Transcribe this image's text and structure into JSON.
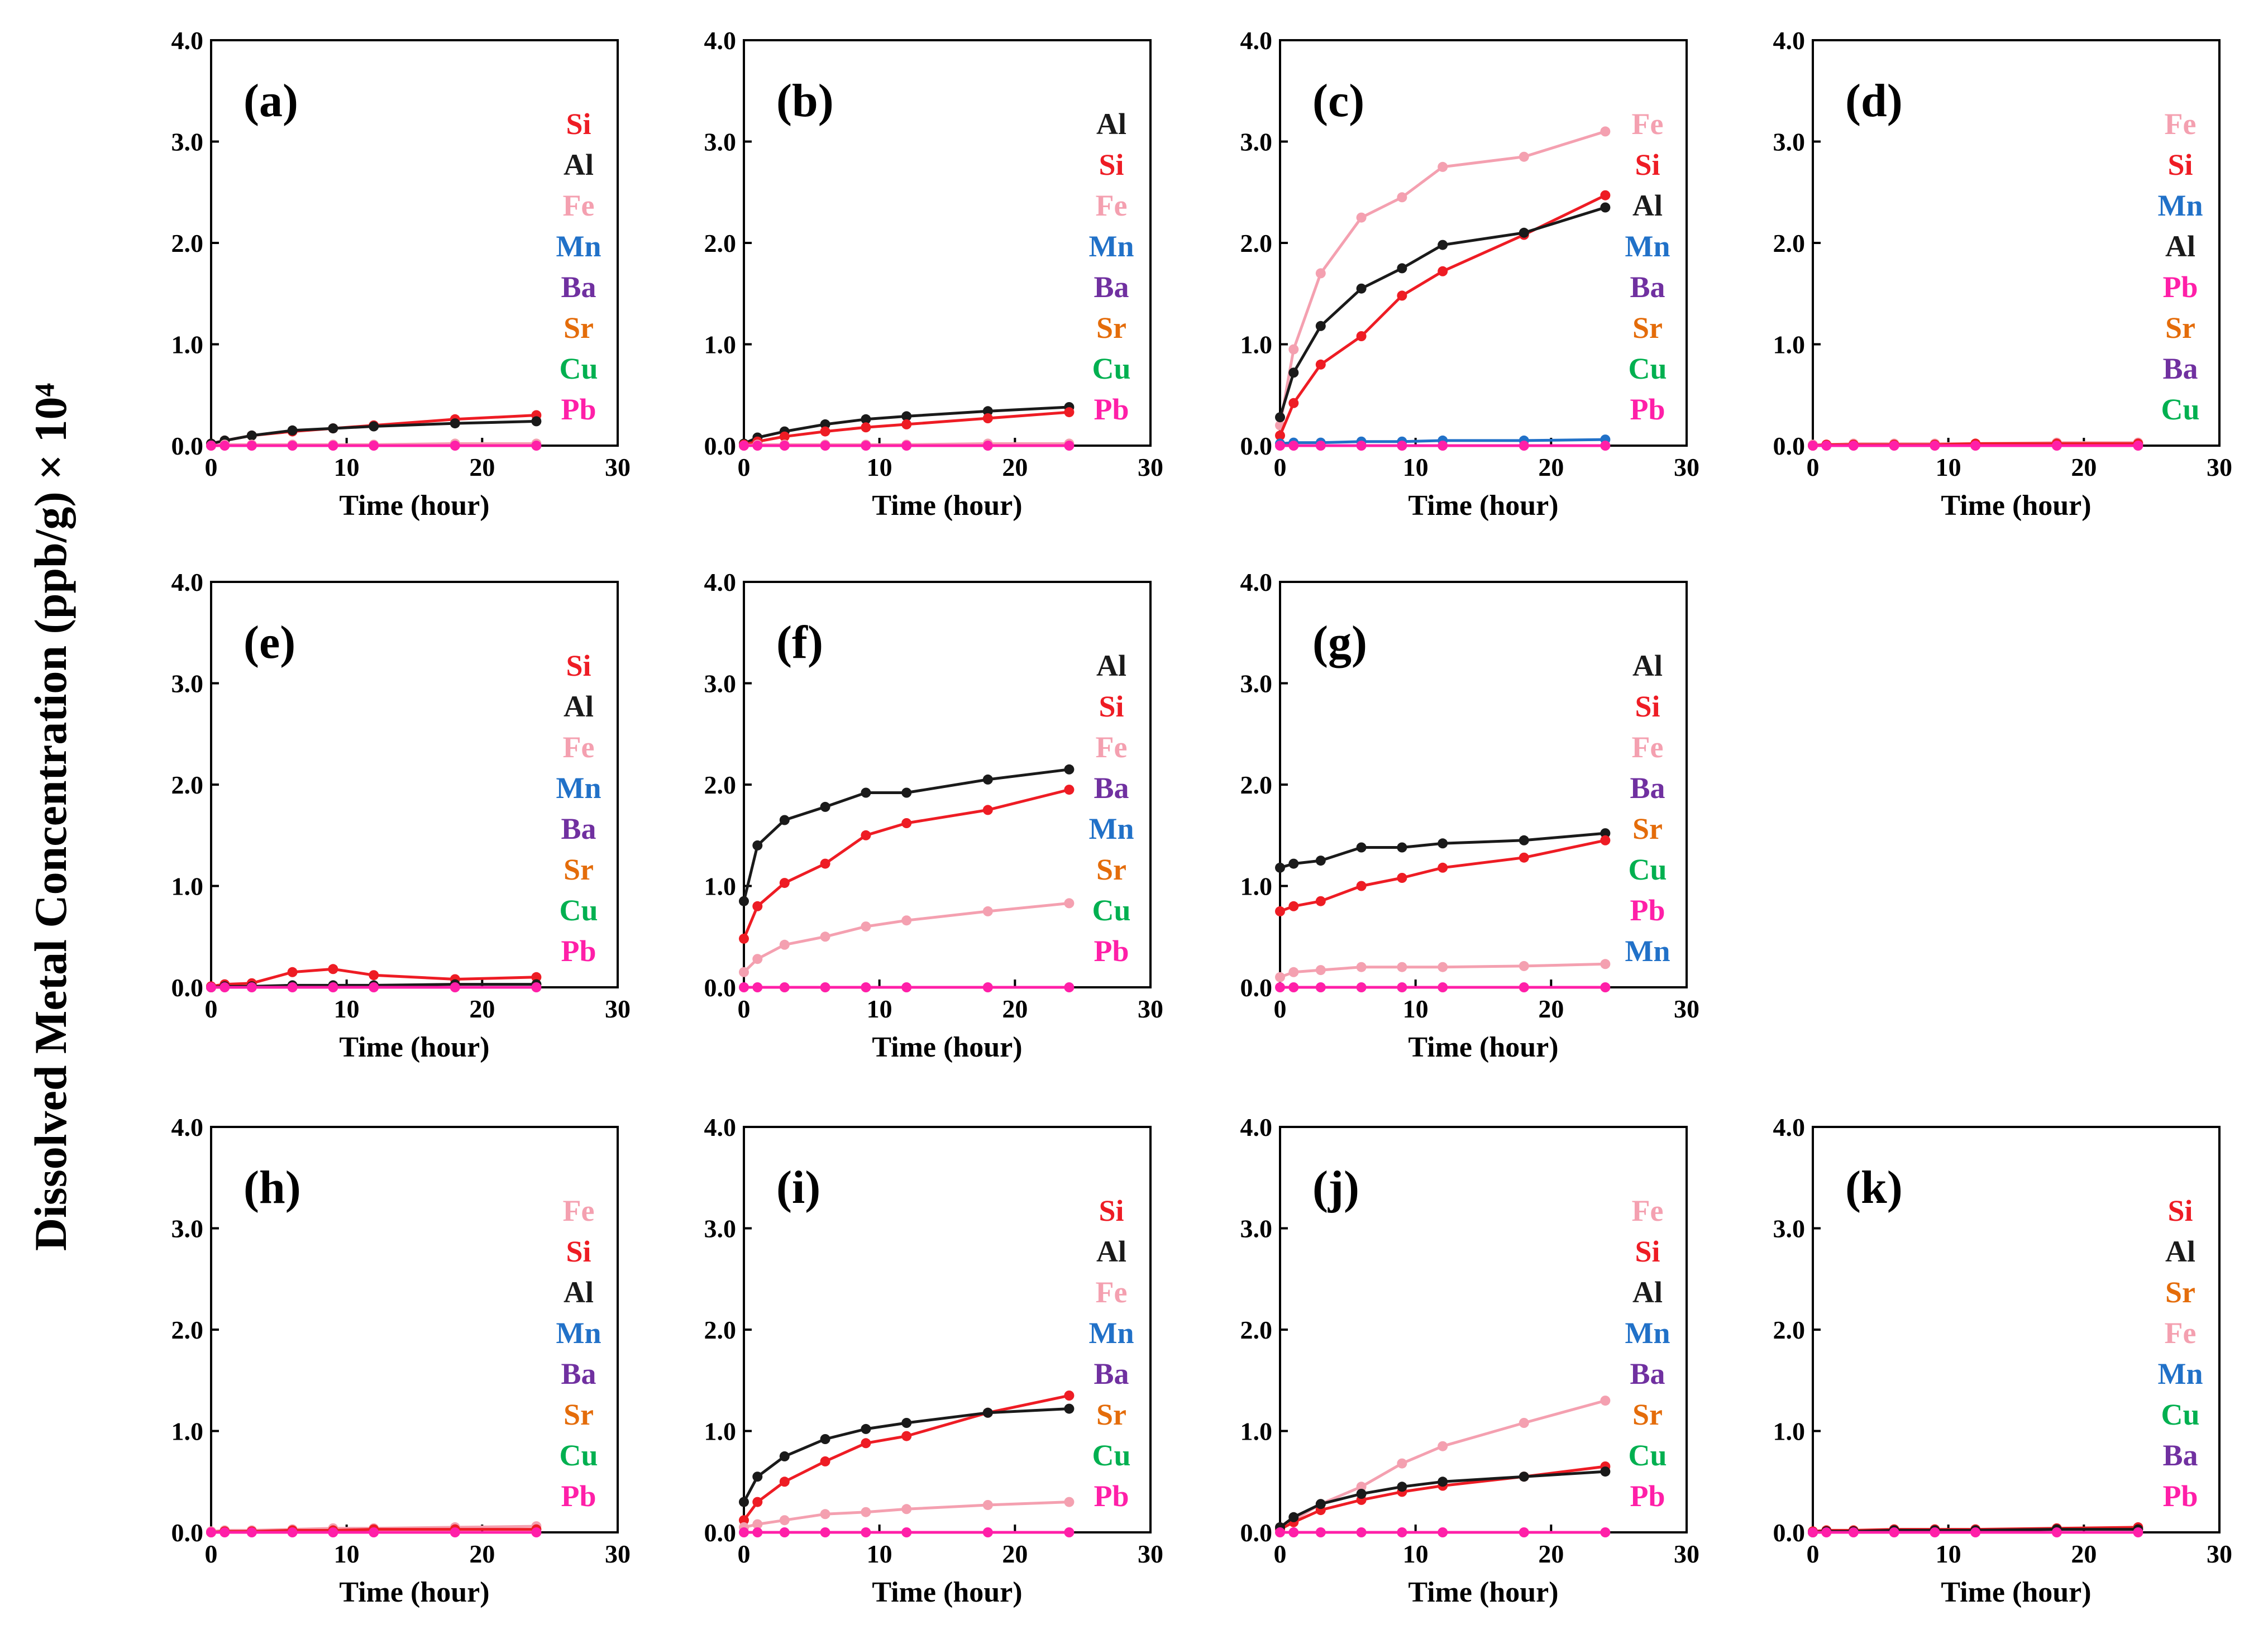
{
  "figure": {
    "y_title": "Dissolved Metal Concentration (ppb/g) × 10⁴"
  },
  "colors": {
    "Si": "#ee1c24",
    "Al": "#1a1a1a",
    "Fe": "#f4a0b0",
    "Mn": "#2171c8",
    "Ba": "#7030a0",
    "Sr": "#e46c0a",
    "Cu": "#00b050",
    "Pb": "#ff1fa8"
  },
  "chart_data": [
    {
      "id": "a",
      "label": "(a)",
      "type": "scatter",
      "xlabel": "Time (hour)",
      "ylabel": "",
      "xlim": [
        0,
        30
      ],
      "ylim": [
        0,
        4.0
      ],
      "xticks": [
        "0",
        "10",
        "20",
        "30"
      ],
      "yticks": [
        "0.0",
        "1.0",
        "2.0",
        "3.0",
        "4.0"
      ],
      "legend": [
        "Si",
        "Al",
        "Fe",
        "Mn",
        "Ba",
        "Sr",
        "Cu",
        "Pb"
      ],
      "x": [
        0,
        1,
        3,
        6,
        9,
        12,
        18,
        24
      ],
      "series": [
        {
          "name": "Si",
          "values": [
            0.02,
            0.05,
            0.1,
            0.14,
            0.17,
            0.2,
            0.26,
            0.3
          ]
        },
        {
          "name": "Al",
          "values": [
            0.02,
            0.05,
            0.1,
            0.15,
            0.17,
            0.19,
            0.22,
            0.24
          ]
        },
        {
          "name": "Fe",
          "values": [
            0,
            0.01,
            0.01,
            0.01,
            0.01,
            0.01,
            0.02,
            0.02
          ]
        },
        {
          "name": "Pb",
          "values": [
            0,
            0,
            0,
            0,
            0,
            0,
            0,
            0
          ]
        }
      ]
    },
    {
      "id": "b",
      "label": "(b)",
      "type": "scatter",
      "xlabel": "Time (hour)",
      "ylabel": "",
      "xlim": [
        0,
        30
      ],
      "ylim": [
        0,
        4.0
      ],
      "xticks": [
        "0",
        "10",
        "20",
        "30"
      ],
      "yticks": [
        "0.0",
        "1.0",
        "2.0",
        "3.0",
        "4.0"
      ],
      "legend": [
        "Al",
        "Si",
        "Fe",
        "Mn",
        "Ba",
        "Sr",
        "Cu",
        "Pb"
      ],
      "x": [
        0,
        1,
        3,
        6,
        9,
        12,
        18,
        24
      ],
      "series": [
        {
          "name": "Al",
          "values": [
            0.02,
            0.08,
            0.14,
            0.21,
            0.26,
            0.29,
            0.34,
            0.38
          ]
        },
        {
          "name": "Si",
          "values": [
            0.01,
            0.04,
            0.09,
            0.14,
            0.18,
            0.21,
            0.27,
            0.33
          ]
        },
        {
          "name": "Fe",
          "values": [
            0,
            0.01,
            0.01,
            0.01,
            0.01,
            0.01,
            0.02,
            0.02
          ]
        },
        {
          "name": "Pb",
          "values": [
            0,
            0,
            0,
            0,
            0,
            0,
            0,
            0
          ]
        }
      ]
    },
    {
      "id": "c",
      "label": "(c)",
      "type": "scatter",
      "xlabel": "Time (hour)",
      "ylabel": "",
      "xlim": [
        0,
        30
      ],
      "ylim": [
        0,
        4.0
      ],
      "xticks": [
        "0",
        "10",
        "20",
        "30"
      ],
      "yticks": [
        "0.0",
        "1.0",
        "2.0",
        "3.0",
        "4.0"
      ],
      "legend": [
        "Fe",
        "Si",
        "Al",
        "Mn",
        "Ba",
        "Sr",
        "Cu",
        "Pb"
      ],
      "x": [
        0,
        1,
        3,
        6,
        9,
        12,
        18,
        24
      ],
      "series": [
        {
          "name": "Fe",
          "values": [
            0.2,
            0.95,
            1.7,
            2.25,
            2.45,
            2.75,
            2.85,
            3.1
          ]
        },
        {
          "name": "Si",
          "values": [
            0.1,
            0.42,
            0.8,
            1.08,
            1.48,
            1.72,
            2.08,
            2.47
          ]
        },
        {
          "name": "Al",
          "values": [
            0.28,
            0.72,
            1.18,
            1.55,
            1.75,
            1.98,
            2.1,
            2.35
          ]
        },
        {
          "name": "Mn",
          "values": [
            0.02,
            0.03,
            0.03,
            0.04,
            0.04,
            0.05,
            0.05,
            0.06
          ]
        },
        {
          "name": "Pb",
          "values": [
            0,
            0,
            0,
            0,
            0,
            0,
            0,
            0
          ]
        }
      ]
    },
    {
      "id": "d",
      "label": "(d)",
      "type": "scatter",
      "xlabel": "Time (hour)",
      "ylabel": "",
      "xlim": [
        0,
        30
      ],
      "ylim": [
        0,
        4.0
      ],
      "xticks": [
        "0",
        "10",
        "20",
        "30"
      ],
      "yticks": [
        "0.0",
        "1.0",
        "2.0",
        "3.0",
        "4.0"
      ],
      "legend": [
        "Fe",
        "Si",
        "Mn",
        "Al",
        "Pb",
        "Sr",
        "Ba",
        "Cu"
      ],
      "x": [
        0,
        1,
        3,
        6,
        9,
        12,
        18,
        24
      ],
      "series": [
        {
          "name": "Fe",
          "values": [
            0.01,
            0.01,
            0.02,
            0.02,
            0.02,
            0.02,
            0.03,
            0.03
          ]
        },
        {
          "name": "Si",
          "values": [
            0,
            0.01,
            0.01,
            0.01,
            0.01,
            0.02,
            0.02,
            0.02
          ]
        },
        {
          "name": "Pb",
          "values": [
            0,
            0,
            0,
            0,
            0,
            0,
            0,
            0
          ]
        }
      ]
    },
    {
      "id": "e",
      "label": "(e)",
      "type": "scatter",
      "xlabel": "Time (hour)",
      "ylabel": "",
      "xlim": [
        0,
        30
      ],
      "ylim": [
        0,
        4.0
      ],
      "xticks": [
        "0",
        "10",
        "20",
        "30"
      ],
      "yticks": [
        "0.0",
        "1.0",
        "2.0",
        "3.0",
        "4.0"
      ],
      "legend": [
        "Si",
        "Al",
        "Fe",
        "Mn",
        "Ba",
        "Sr",
        "Cu",
        "Pb"
      ],
      "x": [
        0,
        1,
        3,
        6,
        9,
        12,
        18,
        24
      ],
      "series": [
        {
          "name": "Si",
          "values": [
            0.01,
            0.03,
            0.04,
            0.15,
            0.18,
            0.12,
            0.08,
            0.1
          ]
        },
        {
          "name": "Al",
          "values": [
            0,
            0.01,
            0.01,
            0.02,
            0.02,
            0.02,
            0.03,
            0.03
          ]
        },
        {
          "name": "Pb",
          "values": [
            0,
            0,
            0,
            0,
            0,
            0,
            0,
            0
          ]
        }
      ]
    },
    {
      "id": "f",
      "label": "(f)",
      "type": "scatter",
      "xlabel": "Time (hour)",
      "ylabel": "",
      "xlim": [
        0,
        30
      ],
      "ylim": [
        0,
        4.0
      ],
      "xticks": [
        "0",
        "10",
        "20",
        "30"
      ],
      "yticks": [
        "0.0",
        "1.0",
        "2.0",
        "3.0",
        "4.0"
      ],
      "legend": [
        "Al",
        "Si",
        "Fe",
        "Ba",
        "Mn",
        "Sr",
        "Cu",
        "Pb"
      ],
      "x": [
        0,
        1,
        3,
        6,
        9,
        12,
        18,
        24
      ],
      "series": [
        {
          "name": "Al",
          "values": [
            0.85,
            1.4,
            1.65,
            1.78,
            1.92,
            1.92,
            2.05,
            2.15
          ]
        },
        {
          "name": "Si",
          "values": [
            0.48,
            0.8,
            1.03,
            1.22,
            1.5,
            1.62,
            1.75,
            1.95
          ]
        },
        {
          "name": "Fe",
          "values": [
            0.15,
            0.28,
            0.42,
            0.5,
            0.6,
            0.66,
            0.75,
            0.83
          ]
        },
        {
          "name": "Pb",
          "values": [
            0,
            0,
            0,
            0,
            0,
            0,
            0,
            0
          ]
        }
      ]
    },
    {
      "id": "g",
      "label": "(g)",
      "type": "scatter",
      "xlabel": "Time (hour)",
      "ylabel": "",
      "xlim": [
        0,
        30
      ],
      "ylim": [
        0,
        4.0
      ],
      "xticks": [
        "0",
        "10",
        "20",
        "30"
      ],
      "yticks": [
        "0.0",
        "1.0",
        "2.0",
        "3.0",
        "4.0"
      ],
      "legend": [
        "Al",
        "Si",
        "Fe",
        "Ba",
        "Sr",
        "Cu",
        "Pb",
        "Mn"
      ],
      "x": [
        0,
        1,
        3,
        6,
        9,
        12,
        18,
        24
      ],
      "series": [
        {
          "name": "Al",
          "values": [
            1.18,
            1.22,
            1.25,
            1.38,
            1.38,
            1.42,
            1.45,
            1.52
          ]
        },
        {
          "name": "Si",
          "values": [
            0.75,
            0.8,
            0.85,
            1.0,
            1.08,
            1.18,
            1.28,
            1.45
          ]
        },
        {
          "name": "Fe",
          "values": [
            0.1,
            0.15,
            0.17,
            0.2,
            0.2,
            0.2,
            0.21,
            0.23
          ]
        },
        {
          "name": "Pb",
          "values": [
            0,
            0,
            0,
            0,
            0,
            0,
            0,
            0
          ]
        }
      ]
    },
    {
      "id": "h",
      "label": "(h)",
      "type": "scatter",
      "xlabel": "Time (hour)",
      "ylabel": "",
      "xlim": [
        0,
        30
      ],
      "ylim": [
        0,
        4.0
      ],
      "xticks": [
        "0",
        "10",
        "20",
        "30"
      ],
      "yticks": [
        "0.0",
        "1.0",
        "2.0",
        "3.0",
        "4.0"
      ],
      "legend": [
        "Fe",
        "Si",
        "Al",
        "Mn",
        "Ba",
        "Sr",
        "Cu",
        "Pb"
      ],
      "x": [
        0,
        1,
        3,
        6,
        9,
        12,
        18,
        24
      ],
      "series": [
        {
          "name": "Fe",
          "values": [
            0.01,
            0.02,
            0.02,
            0.03,
            0.04,
            0.04,
            0.05,
            0.06
          ]
        },
        {
          "name": "Si",
          "values": [
            0,
            0.01,
            0.01,
            0.02,
            0.02,
            0.03,
            0.03,
            0.03
          ]
        },
        {
          "name": "Pb",
          "values": [
            0,
            0,
            0,
            0,
            0,
            0,
            0,
            0
          ]
        }
      ]
    },
    {
      "id": "i",
      "label": "(i)",
      "type": "scatter",
      "xlabel": "Time (hour)",
      "ylabel": "",
      "xlim": [
        0,
        30
      ],
      "ylim": [
        0,
        4.0
      ],
      "xticks": [
        "0",
        "10",
        "20",
        "30"
      ],
      "yticks": [
        "0.0",
        "1.0",
        "2.0",
        "3.0",
        "4.0"
      ],
      "legend": [
        "Si",
        "Al",
        "Fe",
        "Mn",
        "Ba",
        "Sr",
        "Cu",
        "Pb"
      ],
      "x": [
        0,
        1,
        3,
        6,
        9,
        12,
        18,
        24
      ],
      "series": [
        {
          "name": "Si",
          "values": [
            0.12,
            0.3,
            0.5,
            0.7,
            0.88,
            0.95,
            1.18,
            1.35
          ]
        },
        {
          "name": "Al",
          "values": [
            0.3,
            0.55,
            0.75,
            0.92,
            1.02,
            1.08,
            1.18,
            1.22
          ]
        },
        {
          "name": "Fe",
          "values": [
            0.05,
            0.08,
            0.12,
            0.18,
            0.2,
            0.23,
            0.27,
            0.3
          ]
        },
        {
          "name": "Pb",
          "values": [
            0,
            0,
            0,
            0,
            0,
            0,
            0,
            0
          ]
        }
      ]
    },
    {
      "id": "j",
      "label": "(j)",
      "type": "scatter",
      "xlabel": "Time (hour)",
      "ylabel": "",
      "xlim": [
        0,
        30
      ],
      "ylim": [
        0,
        4.0
      ],
      "xticks": [
        "0",
        "10",
        "20",
        "30"
      ],
      "yticks": [
        "0.0",
        "1.0",
        "2.0",
        "3.0",
        "4.0"
      ],
      "legend": [
        "Fe",
        "Si",
        "Al",
        "Mn",
        "Ba",
        "Sr",
        "Cu",
        "Pb"
      ],
      "x": [
        0,
        1,
        3,
        6,
        9,
        12,
        18,
        24
      ],
      "series": [
        {
          "name": "Fe",
          "values": [
            0.05,
            0.12,
            0.28,
            0.45,
            0.68,
            0.85,
            1.08,
            1.3
          ]
        },
        {
          "name": "Si",
          "values": [
            0.03,
            0.1,
            0.22,
            0.32,
            0.4,
            0.46,
            0.55,
            0.65
          ]
        },
        {
          "name": "Al",
          "values": [
            0.05,
            0.15,
            0.28,
            0.38,
            0.45,
            0.5,
            0.55,
            0.6
          ]
        },
        {
          "name": "Pb",
          "values": [
            0,
            0,
            0,
            0,
            0,
            0,
            0,
            0
          ]
        }
      ]
    },
    {
      "id": "k",
      "label": "(k)",
      "type": "scatter",
      "xlabel": "Time (hour)",
      "ylabel": "",
      "xlim": [
        0,
        30
      ],
      "ylim": [
        0,
        4.0
      ],
      "xticks": [
        "0",
        "10",
        "20",
        "30"
      ],
      "yticks": [
        "0.0",
        "1.0",
        "2.0",
        "3.0",
        "4.0"
      ],
      "legend": [
        "Si",
        "Al",
        "Sr",
        "Fe",
        "Mn",
        "Cu",
        "Ba",
        "Pb"
      ],
      "x": [
        0,
        1,
        3,
        6,
        9,
        12,
        18,
        24
      ],
      "series": [
        {
          "name": "Si",
          "values": [
            0.01,
            0.02,
            0.02,
            0.03,
            0.03,
            0.03,
            0.04,
            0.05
          ]
        },
        {
          "name": "Al",
          "values": [
            0,
            0.01,
            0.01,
            0.02,
            0.02,
            0.02,
            0.03,
            0.03
          ]
        },
        {
          "name": "Pb",
          "values": [
            0,
            0,
            0,
            0,
            0,
            0,
            0,
            0
          ]
        }
      ]
    }
  ]
}
